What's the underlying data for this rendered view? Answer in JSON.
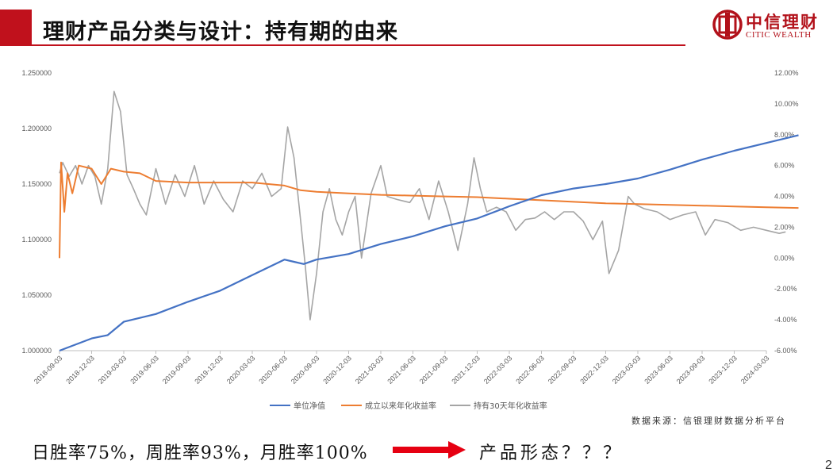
{
  "header": {
    "title": "理财产品分类与设计：持有期的由来",
    "logo_cn": "中信理财",
    "logo_en": "CITIC WEALTH"
  },
  "source_note": "数据来源：信银理财数据分析平台",
  "bottom": {
    "win_rates": "日胜率75%，周胜率93%，月胜率100%",
    "conclusion": "产品形态？？？"
  },
  "page_number": "2",
  "colors": {
    "brand_red": "#c0111c",
    "nav_blue": "#4472c4",
    "annualized_orange": "#ed7d31",
    "rolling_gray": "#a5a5a5"
  },
  "chart_data": {
    "type": "line",
    "x_ticks": [
      "2018-09-03",
      "2018-12-03",
      "2019-03-03",
      "2019-06-03",
      "2019-09-03",
      "2019-12-03",
      "2020-03-03",
      "2020-06-03",
      "2020-09-03",
      "2020-12-03",
      "2021-03-03",
      "2021-06-03",
      "2021-09-03",
      "2021-12-03",
      "2022-03-03",
      "2022-06-03",
      "2022-09-03",
      "2022-12-03",
      "2023-03-03",
      "2023-06-03",
      "2023-09-03",
      "2023-12-03",
      "2024-03-03"
    ],
    "y_left": {
      "ticks": [
        "1.000000",
        "1.050000",
        "1.100000",
        "1.150000",
        "1.200000",
        "1.250000"
      ],
      "range": [
        1.0,
        1.25
      ]
    },
    "y_right": {
      "ticks": [
        "-6.00%",
        "-4.00%",
        "-2.00%",
        "0.00%",
        "2.00%",
        "4.00%",
        "6.00%",
        "8.00%",
        "10.00%",
        "12.00%"
      ],
      "range": [
        -6,
        12
      ]
    },
    "legend_position": "bottom",
    "series": [
      {
        "name": "单位净值",
        "axis": "left",
        "points": [
          [
            0,
            1.0
          ],
          [
            1,
            1.011
          ],
          [
            1.5,
            1.014
          ],
          [
            2,
            1.026
          ],
          [
            3,
            1.033
          ],
          [
            4,
            1.044
          ],
          [
            5,
            1.054
          ],
          [
            6,
            1.068
          ],
          [
            7,
            1.082
          ],
          [
            7.3,
            1.08
          ],
          [
            7.6,
            1.078
          ],
          [
            8,
            1.082
          ],
          [
            9,
            1.087
          ],
          [
            10,
            1.096
          ],
          [
            11,
            1.103
          ],
          [
            12,
            1.112
          ],
          [
            13,
            1.119
          ],
          [
            14,
            1.13
          ],
          [
            15,
            1.14
          ],
          [
            16,
            1.146
          ],
          [
            17,
            1.15
          ],
          [
            18,
            1.155
          ],
          [
            19,
            1.163
          ],
          [
            20,
            1.172
          ],
          [
            21,
            1.18
          ],
          [
            22,
            1.187
          ],
          [
            23,
            1.194
          ]
        ]
      },
      {
        "name": "成立以来年化收益率",
        "axis": "right",
        "points": [
          [
            0,
            0.0
          ],
          [
            0.05,
            6.2
          ],
          [
            0.15,
            3.0
          ],
          [
            0.25,
            5.5
          ],
          [
            0.4,
            4.2
          ],
          [
            0.6,
            6.0
          ],
          [
            1,
            5.8
          ],
          [
            1.3,
            4.8
          ],
          [
            1.6,
            5.8
          ],
          [
            2,
            5.6
          ],
          [
            2.5,
            5.5
          ],
          [
            3,
            5.0
          ],
          [
            4,
            4.9
          ],
          [
            5,
            4.9
          ],
          [
            6,
            4.9
          ],
          [
            7,
            4.7
          ],
          [
            7.5,
            4.4
          ],
          [
            8,
            4.3
          ],
          [
            9,
            4.2
          ],
          [
            10,
            4.1
          ],
          [
            11,
            4.05
          ],
          [
            12,
            4.0
          ],
          [
            13,
            3.95
          ],
          [
            14,
            3.85
          ],
          [
            15,
            3.75
          ],
          [
            16,
            3.65
          ],
          [
            17,
            3.55
          ],
          [
            18,
            3.5
          ],
          [
            19,
            3.45
          ],
          [
            20,
            3.4
          ],
          [
            21,
            3.35
          ],
          [
            22,
            3.3
          ],
          [
            23,
            3.25
          ]
        ]
      },
      {
        "name": "持有30天年化收益率",
        "axis": "right",
        "points": [
          [
            0,
            5.5
          ],
          [
            0.1,
            6.2
          ],
          [
            0.3,
            5.3
          ],
          [
            0.5,
            6.0
          ],
          [
            0.7,
            4.8
          ],
          [
            0.9,
            6.0
          ],
          [
            1.1,
            5.3
          ],
          [
            1.3,
            3.5
          ],
          [
            1.5,
            5.8
          ],
          [
            1.7,
            10.8
          ],
          [
            1.9,
            9.5
          ],
          [
            2.1,
            5.4
          ],
          [
            2.3,
            4.5
          ],
          [
            2.5,
            3.5
          ],
          [
            2.7,
            2.8
          ],
          [
            3.0,
            5.8
          ],
          [
            3.3,
            3.5
          ],
          [
            3.6,
            5.4
          ],
          [
            3.9,
            4.0
          ],
          [
            4.2,
            6.0
          ],
          [
            4.5,
            3.5
          ],
          [
            4.8,
            5.0
          ],
          [
            5.1,
            3.8
          ],
          [
            5.4,
            3.0
          ],
          [
            5.7,
            5.0
          ],
          [
            6.0,
            4.5
          ],
          [
            6.3,
            5.5
          ],
          [
            6.6,
            4.0
          ],
          [
            6.9,
            4.5
          ],
          [
            7.1,
            8.5
          ],
          [
            7.3,
            6.5
          ],
          [
            7.5,
            2.5
          ],
          [
            7.65,
            -0.5
          ],
          [
            7.8,
            -4.0
          ],
          [
            8.0,
            -1.0
          ],
          [
            8.2,
            3.0
          ],
          [
            8.4,
            4.5
          ],
          [
            8.6,
            2.5
          ],
          [
            8.8,
            1.5
          ],
          [
            9.0,
            3.0
          ],
          [
            9.2,
            4.0
          ],
          [
            9.4,
            0.0
          ],
          [
            9.7,
            4.2
          ],
          [
            10.0,
            6.0
          ],
          [
            10.2,
            4.0
          ],
          [
            10.5,
            3.8
          ],
          [
            10.9,
            3.6
          ],
          [
            11.2,
            4.5
          ],
          [
            11.5,
            2.5
          ],
          [
            11.8,
            5.0
          ],
          [
            12.1,
            3.0
          ],
          [
            12.4,
            0.5
          ],
          [
            12.7,
            3.5
          ],
          [
            12.9,
            6.5
          ],
          [
            13.1,
            4.5
          ],
          [
            13.3,
            3.0
          ],
          [
            13.6,
            3.3
          ],
          [
            13.9,
            3.0
          ],
          [
            14.2,
            1.8
          ],
          [
            14.5,
            2.5
          ],
          [
            14.8,
            2.6
          ],
          [
            15.1,
            3.0
          ],
          [
            15.4,
            2.5
          ],
          [
            15.7,
            3.0
          ],
          [
            16.0,
            3.0
          ],
          [
            16.3,
            2.4
          ],
          [
            16.6,
            1.2
          ],
          [
            16.9,
            2.4
          ],
          [
            17.1,
            -1.0
          ],
          [
            17.4,
            0.5
          ],
          [
            17.7,
            4.0
          ],
          [
            17.9,
            3.5
          ],
          [
            18.2,
            3.2
          ],
          [
            18.6,
            3.0
          ],
          [
            19.0,
            2.5
          ],
          [
            19.4,
            2.8
          ],
          [
            19.8,
            3.0
          ],
          [
            20.1,
            1.5
          ],
          [
            20.4,
            2.5
          ],
          [
            20.8,
            2.3
          ],
          [
            21.2,
            1.8
          ],
          [
            21.6,
            2.0
          ],
          [
            22.0,
            1.8
          ],
          [
            22.4,
            1.6
          ],
          [
            22.6,
            1.7
          ]
        ]
      }
    ]
  }
}
